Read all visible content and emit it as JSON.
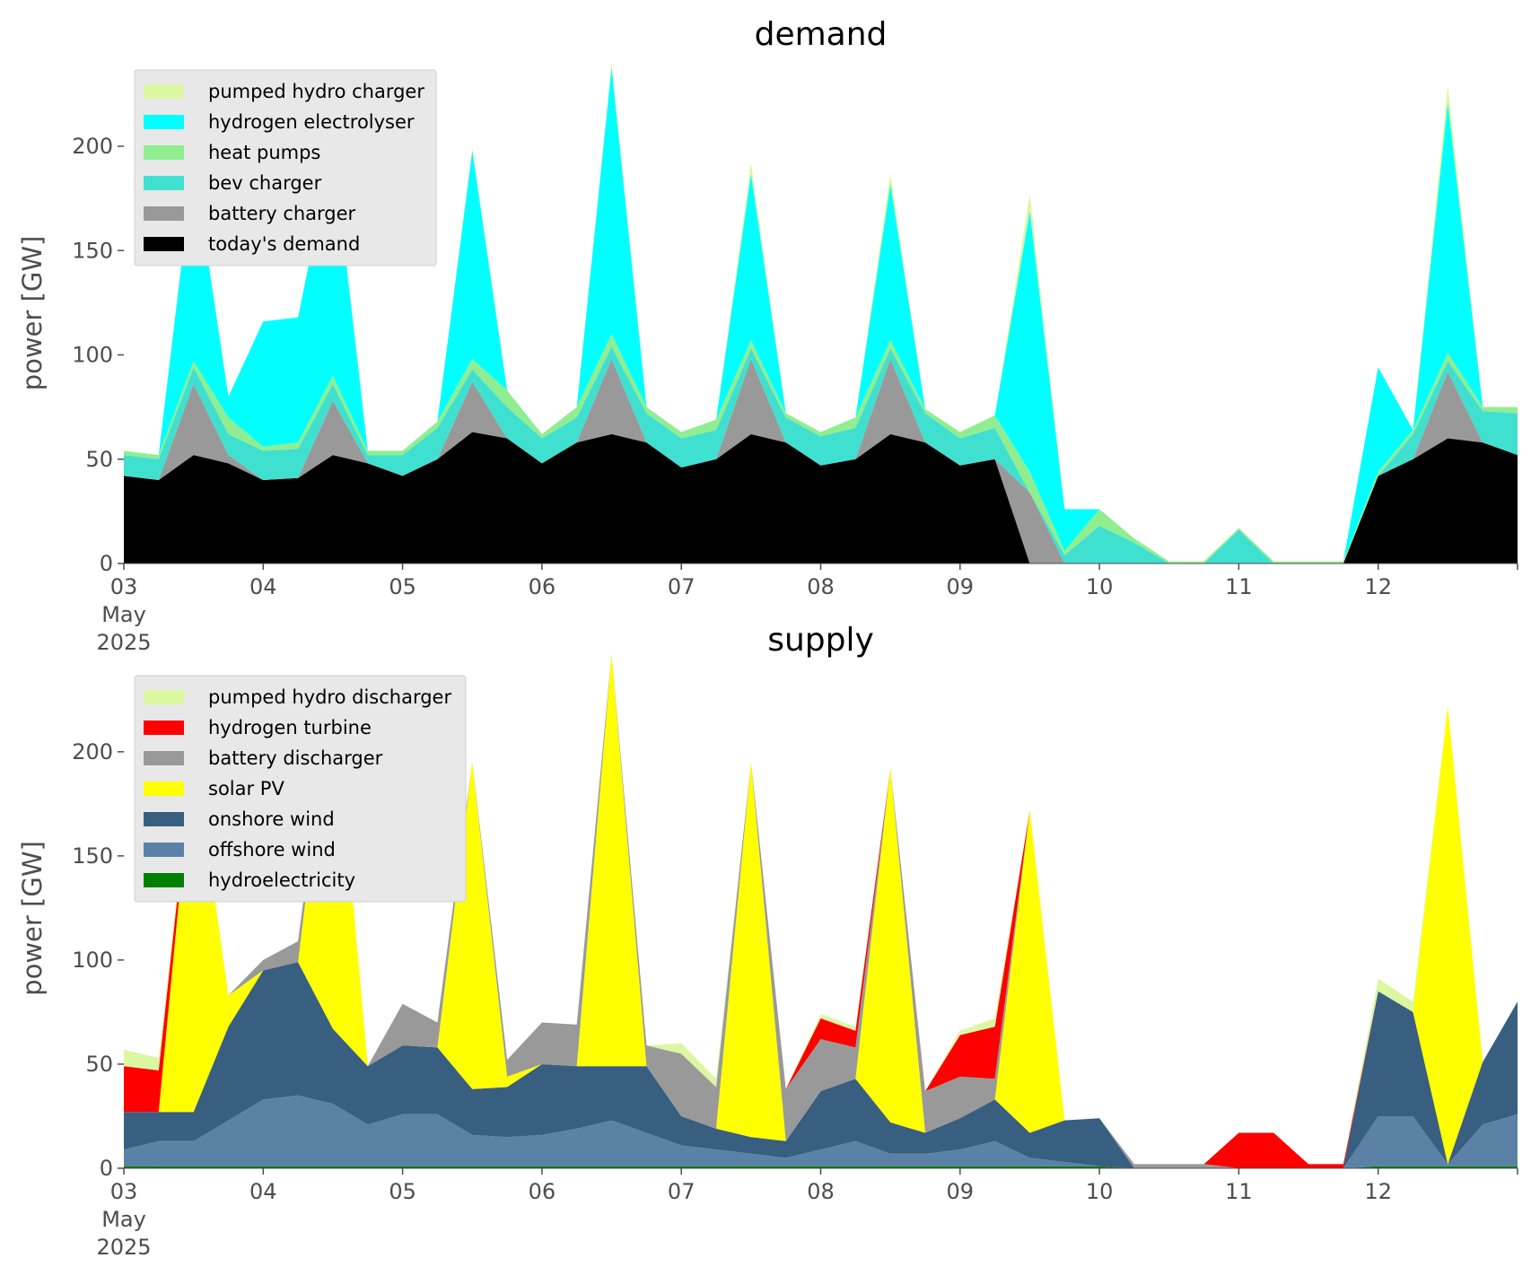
{
  "chart_data": [
    {
      "type": "area",
      "stacked": true,
      "title": "demand",
      "ylabel": "power [GW]",
      "xlim": [
        "2025-05-03T00:00",
        "2025-05-13T00:00"
      ],
      "ylim": [
        0,
        240
      ],
      "yticks": [
        0,
        50,
        100,
        150,
        200
      ],
      "xtick_labels": [
        [
          "03",
          "May",
          "2025"
        ],
        [
          "04"
        ],
        [
          "05"
        ],
        [
          "06"
        ],
        [
          "07"
        ],
        [
          "08"
        ],
        [
          "09"
        ],
        [
          "10"
        ],
        [
          "11"
        ],
        [
          "12"
        ]
      ],
      "legend_position": "upper-left",
      "legend": [
        "pumped hydro charger",
        "hydrogen electrolyser",
        "heat pumps",
        "bev charger",
        "battery charger",
        "today's demand"
      ],
      "x": [
        "05-03 00:00",
        "05-03 06:00",
        "05-03 12:00",
        "05-03 18:00",
        "05-04 00:00",
        "05-04 06:00",
        "05-04 12:00",
        "05-04 18:00",
        "05-05 00:00",
        "05-05 06:00",
        "05-05 12:00",
        "05-05 18:00",
        "05-06 00:00",
        "05-06 06:00",
        "05-06 12:00",
        "05-06 18:00",
        "05-07 00:00",
        "05-07 06:00",
        "05-07 12:00",
        "05-07 18:00",
        "05-08 00:00",
        "05-08 06:00",
        "05-08 12:00",
        "05-08 18:00",
        "05-09 00:00",
        "05-09 06:00",
        "05-09 12:00",
        "05-09 18:00",
        "05-10 00:00",
        "05-10 06:00",
        "05-10 12:00",
        "05-10 18:00",
        "05-11 00:00",
        "05-11 06:00",
        "05-11 12:00",
        "05-11 18:00",
        "05-12 00:00",
        "05-12 06:00",
        "05-12 12:00",
        "05-12 18:00",
        "05-13 00:00"
      ],
      "series": [
        {
          "name": "today's demand",
          "color": "#000000",
          "values": [
            42,
            40,
            52,
            48,
            40,
            41,
            52,
            48,
            42,
            50,
            63,
            60,
            48,
            58,
            62,
            58,
            46,
            50,
            62,
            58,
            47,
            50,
            62,
            58,
            47,
            50,
            0,
            0,
            0,
            0,
            0,
            0,
            0,
            0,
            0,
            0,
            42,
            50,
            60,
            58,
            52
          ]
        },
        {
          "name": "battery charger",
          "color": "#999999",
          "values": [
            0,
            0,
            34,
            4,
            0,
            0,
            26,
            0,
            0,
            0,
            24,
            0,
            0,
            0,
            36,
            0,
            0,
            0,
            36,
            0,
            0,
            0,
            36,
            0,
            0,
            0,
            34,
            0,
            0,
            0,
            0,
            0,
            0,
            0,
            0,
            0,
            0,
            0,
            32,
            0,
            0
          ]
        },
        {
          "name": "bev charger",
          "color": "#40e0d0",
          "values": [
            10,
            10,
            8,
            10,
            14,
            14,
            8,
            4,
            10,
            15,
            6,
            15,
            12,
            12,
            6,
            14,
            14,
            14,
            5,
            12,
            14,
            15,
            5,
            14,
            13,
            15,
            0,
            4,
            18,
            10,
            0,
            0,
            16,
            0,
            0,
            0,
            0,
            12,
            5,
            15,
            20
          ]
        },
        {
          "name": "heat pumps",
          "color": "#90ee90",
          "values": [
            2,
            2,
            3,
            8,
            2,
            3,
            4,
            2,
            2,
            3,
            5,
            8,
            2,
            5,
            6,
            3,
            3,
            5,
            4,
            2,
            2,
            5,
            4,
            2,
            3,
            6,
            10,
            2,
            8,
            2,
            1,
            1,
            1,
            1,
            1,
            1,
            2,
            2,
            4,
            2,
            3
          ]
        },
        {
          "name": "hydrogen electrolyser",
          "color": "#00ffff",
          "values": [
            0,
            0,
            95,
            10,
            60,
            60,
            110,
            0,
            0,
            0,
            100,
            0,
            0,
            0,
            128,
            0,
            0,
            0,
            80,
            0,
            0,
            0,
            75,
            0,
            0,
            0,
            125,
            20,
            0,
            0,
            0,
            0,
            0,
            0,
            0,
            0,
            50,
            0,
            120,
            0,
            0
          ]
        },
        {
          "name": "pumped hydro charger",
          "color": "#dbf7a2",
          "values": [
            0,
            0,
            1,
            0,
            0,
            0,
            1,
            0,
            0,
            0,
            1,
            0,
            0,
            0,
            2,
            0,
            0,
            0,
            5,
            0,
            0,
            0,
            5,
            0,
            0,
            0,
            8,
            0,
            0,
            0,
            0,
            0,
            0,
            0,
            0,
            0,
            0,
            0,
            8,
            0,
            0
          ]
        }
      ]
    },
    {
      "type": "area",
      "stacked": true,
      "title": "supply",
      "ylabel": "power [GW]",
      "xlim": [
        "2025-05-03T00:00",
        "2025-05-13T00:00"
      ],
      "ylim": [
        0,
        240
      ],
      "yticks": [
        0,
        50,
        100,
        150,
        200
      ],
      "xtick_labels": [
        [
          "03",
          "May",
          "2025"
        ],
        [
          "04"
        ],
        [
          "05"
        ],
        [
          "06"
        ],
        [
          "07"
        ],
        [
          "08"
        ],
        [
          "09"
        ],
        [
          "10"
        ],
        [
          "11"
        ],
        [
          "12"
        ]
      ],
      "legend_position": "upper-left",
      "legend": [
        "pumped hydro discharger",
        "hydrogen turbine",
        "battery discharger",
        "solar PV",
        "onshore wind",
        "offshore wind",
        "hydroelectricity"
      ],
      "x": [
        "05-03 00:00",
        "05-03 06:00",
        "05-03 12:00",
        "05-03 18:00",
        "05-04 00:00",
        "05-04 06:00",
        "05-04 12:00",
        "05-04 18:00",
        "05-05 00:00",
        "05-05 06:00",
        "05-05 12:00",
        "05-05 18:00",
        "05-06 00:00",
        "05-06 06:00",
        "05-06 12:00",
        "05-06 18:00",
        "05-07 00:00",
        "05-07 06:00",
        "05-07 12:00",
        "05-07 18:00",
        "05-08 00:00",
        "05-08 06:00",
        "05-08 12:00",
        "05-08 18:00",
        "05-09 00:00",
        "05-09 06:00",
        "05-09 12:00",
        "05-09 18:00",
        "05-10 00:00",
        "05-10 06:00",
        "05-10 12:00",
        "05-10 18:00",
        "05-11 00:00",
        "05-11 06:00",
        "05-11 12:00",
        "05-11 18:00",
        "05-12 00:00",
        "05-12 06:00",
        "05-12 12:00",
        "05-12 18:00",
        "05-13 00:00"
      ],
      "series": [
        {
          "name": "hydroelectricity",
          "color": "#008000",
          "values": [
            1,
            1,
            1,
            1,
            1,
            1,
            1,
            1,
            1,
            1,
            1,
            1,
            1,
            1,
            1,
            1,
            1,
            1,
            1,
            1,
            1,
            1,
            1,
            1,
            1,
            1,
            1,
            1,
            1,
            0,
            0,
            0,
            0,
            0,
            0,
            0,
            1,
            1,
            1,
            1,
            1
          ]
        },
        {
          "name": "offshore wind",
          "color": "#5b82a6",
          "values": [
            8,
            12,
            12,
            22,
            32,
            34,
            30,
            20,
            25,
            25,
            15,
            14,
            15,
            18,
            22,
            16,
            10,
            8,
            6,
            4,
            8,
            12,
            6,
            6,
            8,
            12,
            4,
            2,
            0,
            0,
            0,
            0,
            0,
            0,
            0,
            0,
            24,
            24,
            1,
            20,
            25
          ]
        },
        {
          "name": "onshore wind",
          "color": "#385e80",
          "values": [
            18,
            14,
            14,
            45,
            62,
            64,
            36,
            28,
            33,
            32,
            22,
            24,
            34,
            30,
            26,
            32,
            14,
            10,
            8,
            8,
            28,
            30,
            15,
            10,
            15,
            20,
            12,
            20,
            23,
            0,
            0,
            0,
            0,
            0,
            0,
            0,
            60,
            50,
            0,
            30,
            54
          ]
        },
        {
          "name": "solar PV",
          "color": "#ffff00",
          "values": [
            0,
            0,
            175,
            15,
            0,
            0,
            170,
            0,
            0,
            0,
            157,
            5,
            0,
            0,
            198,
            0,
            0,
            0,
            180,
            0,
            0,
            0,
            170,
            0,
            0,
            0,
            155,
            0,
            0,
            0,
            0,
            0,
            0,
            0,
            0,
            0,
            0,
            0,
            220,
            0,
            0
          ]
        },
        {
          "name": "battery discharger",
          "color": "#999999",
          "values": [
            0,
            0,
            0,
            0,
            5,
            10,
            0,
            0,
            20,
            12,
            0,
            8,
            20,
            20,
            0,
            10,
            30,
            20,
            0,
            25,
            25,
            15,
            0,
            20,
            20,
            10,
            0,
            0,
            0,
            2,
            2,
            2,
            0,
            0,
            0,
            0,
            0,
            0,
            0,
            0,
            0
          ]
        },
        {
          "name": "hydrogen turbine",
          "color": "#ff0000",
          "values": [
            22,
            20,
            0,
            0,
            0,
            0,
            0,
            0,
            0,
            0,
            0,
            0,
            0,
            0,
            0,
            0,
            0,
            0,
            0,
            0,
            10,
            8,
            0,
            0,
            20,
            25,
            0,
            0,
            0,
            0,
            0,
            0,
            17,
            17,
            2,
            2,
            0,
            0,
            0,
            0,
            0
          ]
        },
        {
          "name": "pumped hydro discharger",
          "color": "#dbf7a2",
          "values": [
            8,
            6,
            0,
            0,
            0,
            0,
            0,
            0,
            0,
            0,
            0,
            0,
            0,
            0,
            0,
            0,
            5,
            4,
            0,
            0,
            2,
            2,
            0,
            0,
            2,
            4,
            0,
            0,
            0,
            0,
            0,
            0,
            0,
            0,
            0,
            0,
            6,
            5,
            0,
            0,
            0
          ]
        }
      ]
    }
  ]
}
